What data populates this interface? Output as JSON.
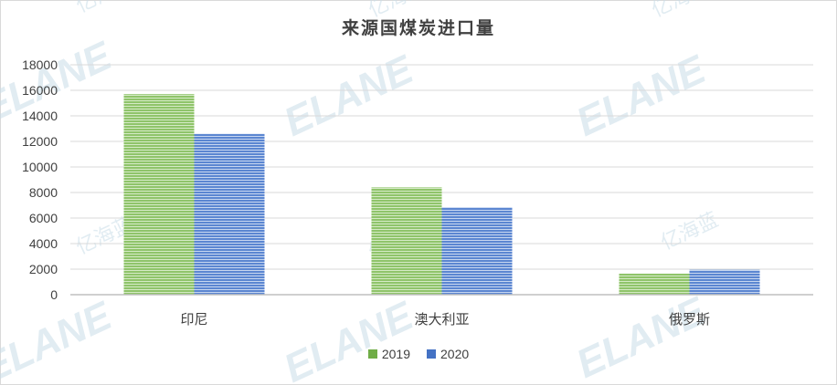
{
  "chart_data": {
    "type": "bar",
    "title": "来源国煤炭进口量",
    "categories": [
      "印尼",
      "澳大利亚",
      "俄罗斯"
    ],
    "series": [
      {
        "name": "2019",
        "values": [
          15700,
          8400,
          1650
        ],
        "color": "#70ad47"
      },
      {
        "name": "2020",
        "values": [
          12600,
          6850,
          1950
        ],
        "color": "#4472c4"
      }
    ],
    "ylim": [
      0,
      18000
    ],
    "yticks": [
      0,
      2000,
      4000,
      6000,
      8000,
      10000,
      12000,
      14000,
      16000,
      18000
    ],
    "grid": true,
    "legend_position": "bottom",
    "watermark": {
      "latin": "ELANE",
      "chinese": "亿海蓝"
    }
  }
}
